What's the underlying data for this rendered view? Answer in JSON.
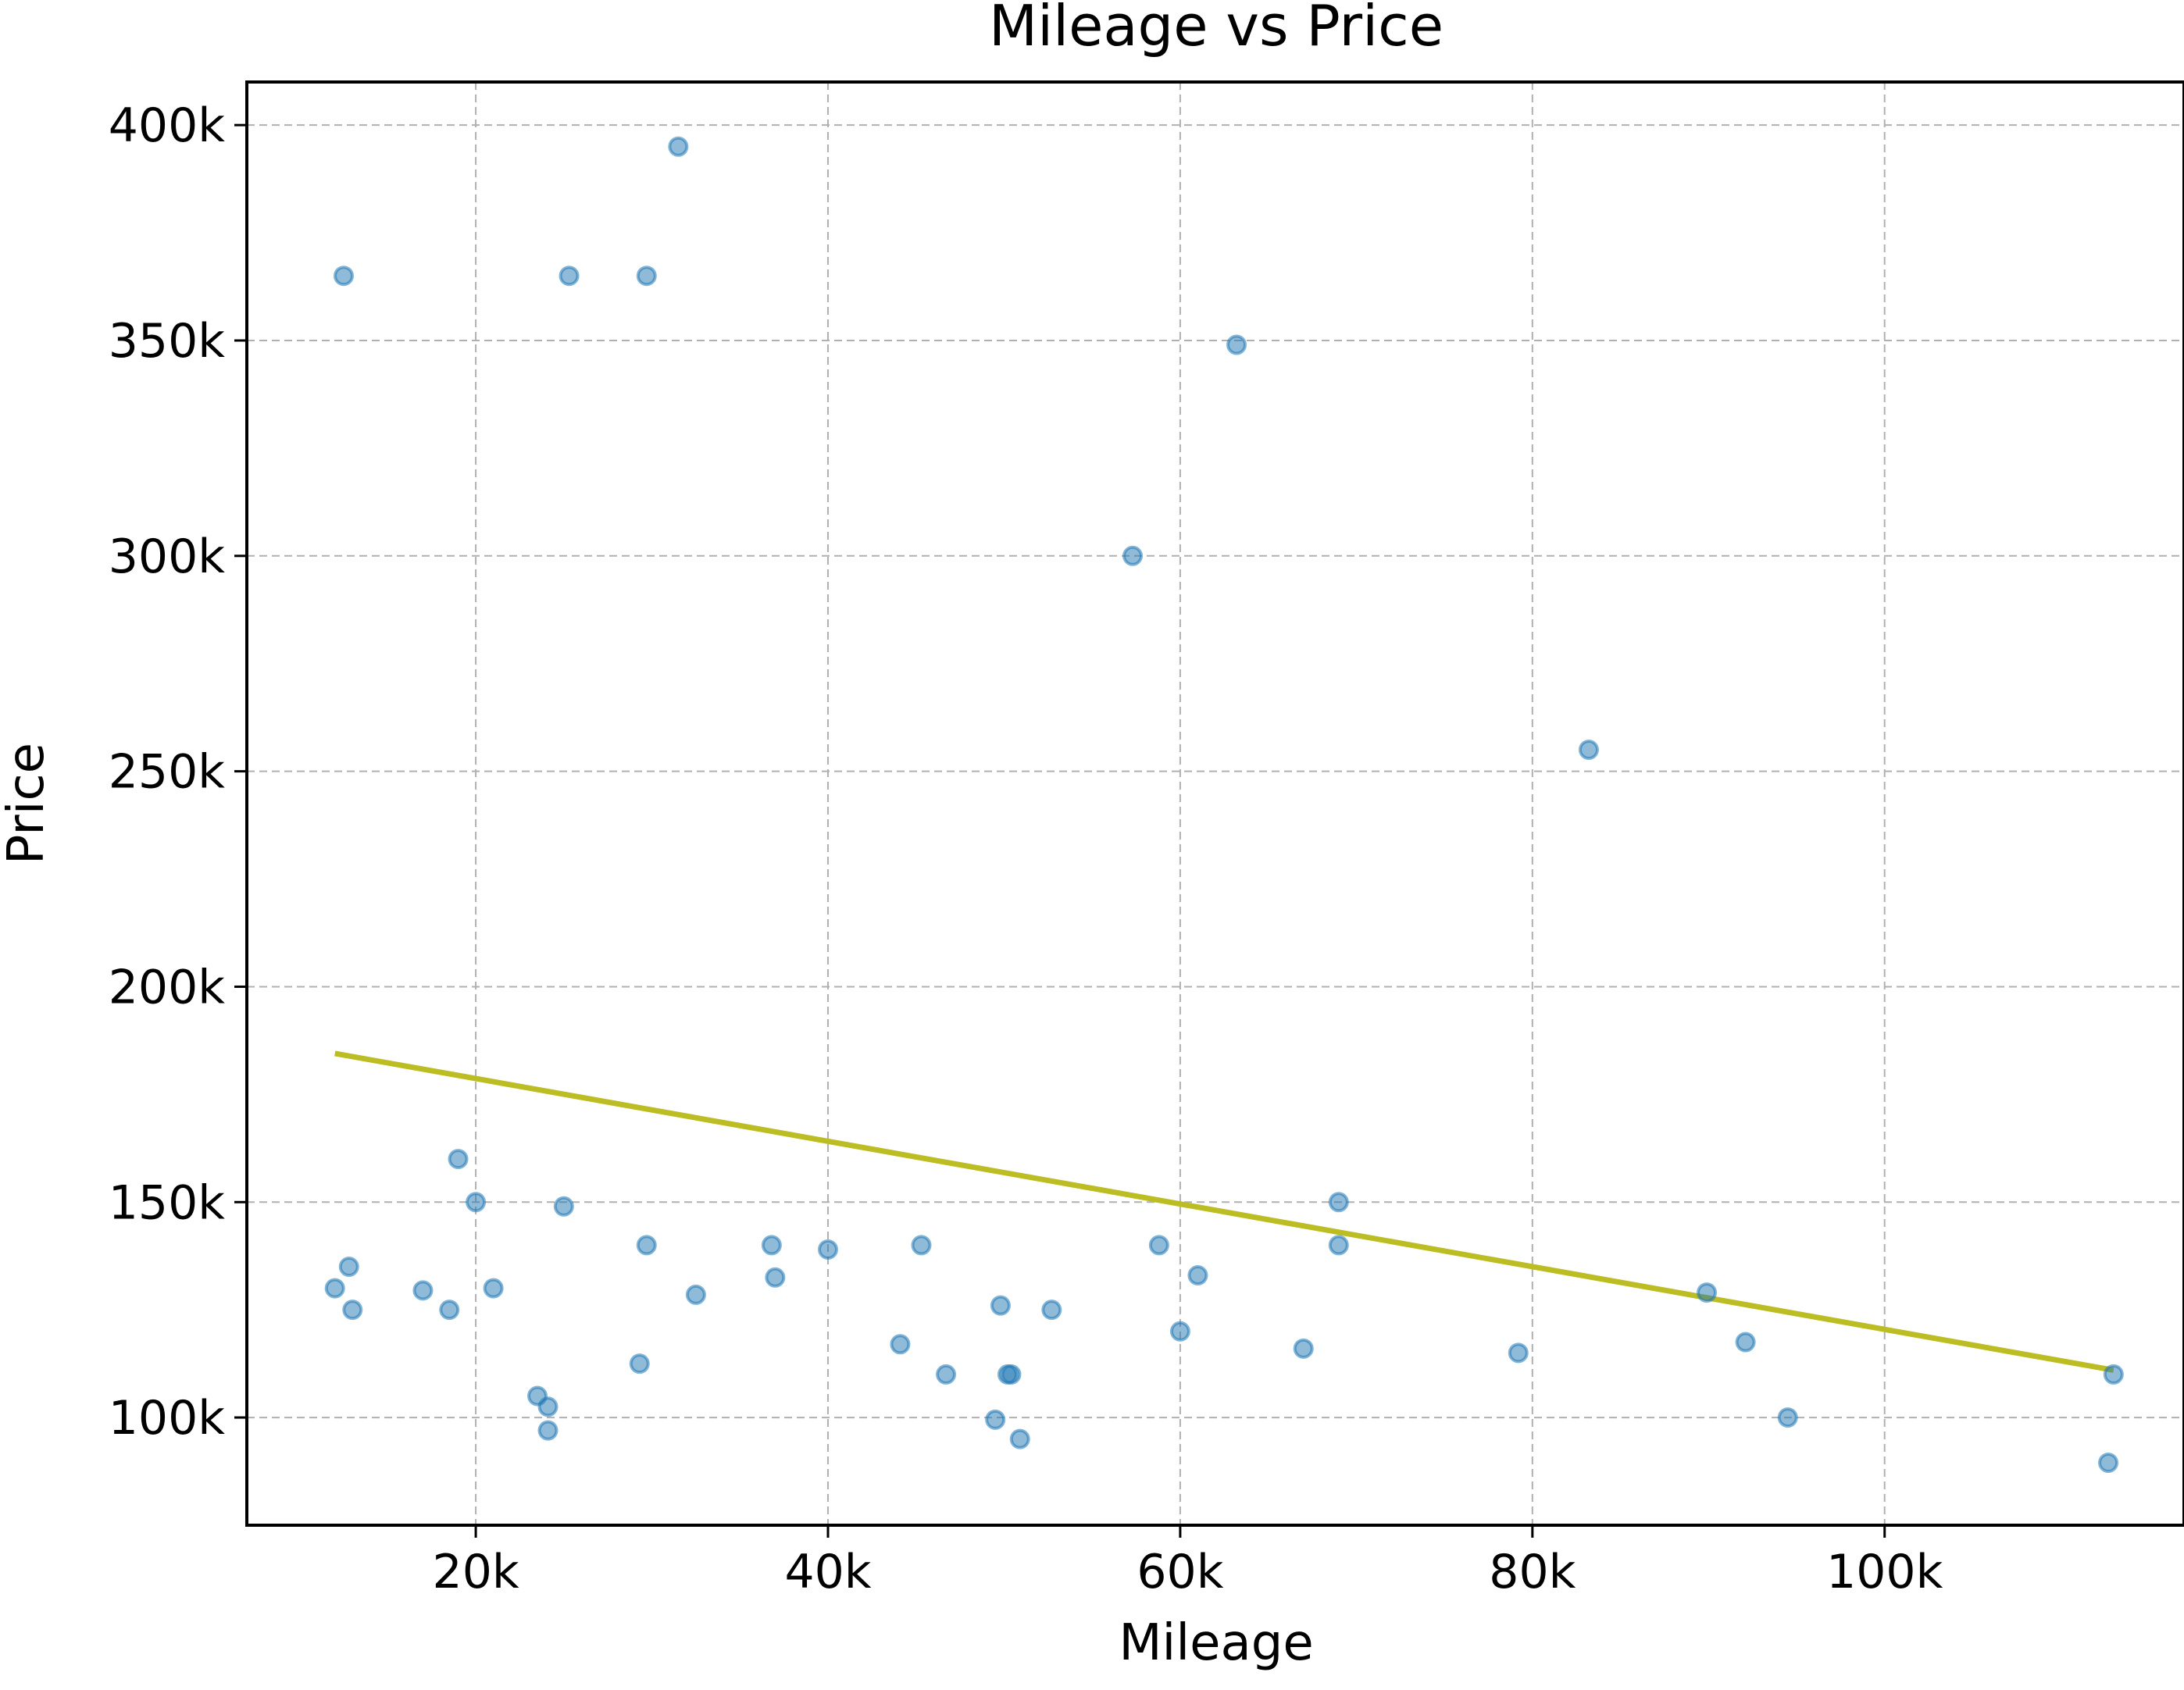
{
  "chart_data": {
    "type": "scatter",
    "title": "Mileage vs Price",
    "xlabel": "Mileage",
    "ylabel": "Price",
    "xlim": [
      7000,
      117000
    ],
    "ylim": [
      75000,
      410000
    ],
    "grid": true,
    "x_ticks": [
      20000,
      40000,
      60000,
      80000,
      100000
    ],
    "x_tick_labels": [
      "20k",
      "40k",
      "60k",
      "80k",
      "100k"
    ],
    "y_ticks": [
      100000,
      150000,
      200000,
      250000,
      300000,
      350000,
      400000
    ],
    "y_tick_labels": [
      "100k",
      "150k",
      "200k",
      "250k",
      "300k",
      "350k",
      "400k"
    ],
    "series": [
      {
        "type": "scatter",
        "color": "#1f77b4",
        "points": [
          [
            12500,
            365000
          ],
          [
            25300,
            365000
          ],
          [
            29700,
            365000
          ],
          [
            31500,
            395000
          ],
          [
            63200,
            349000
          ],
          [
            57300,
            300000
          ],
          [
            83200,
            255000
          ],
          [
            12000,
            130000
          ],
          [
            12800,
            135000
          ],
          [
            13000,
            125000
          ],
          [
            17000,
            129500
          ],
          [
            18500,
            125000
          ],
          [
            19000,
            160000
          ],
          [
            20000,
            150000
          ],
          [
            21000,
            130000
          ],
          [
            23500,
            105000
          ],
          [
            24100,
            102500
          ],
          [
            24100,
            97000
          ],
          [
            25000,
            149000
          ],
          [
            29300,
            112500
          ],
          [
            29700,
            140000
          ],
          [
            32500,
            128500
          ],
          [
            36800,
            140000
          ],
          [
            37000,
            132500
          ],
          [
            40000,
            139000
          ],
          [
            44100,
            117000
          ],
          [
            45300,
            140000
          ],
          [
            46700,
            110000
          ],
          [
            49500,
            99500
          ],
          [
            49800,
            126000
          ],
          [
            50200,
            110000
          ],
          [
            50400,
            110000
          ],
          [
            50900,
            95000
          ],
          [
            52700,
            125000
          ],
          [
            58800,
            140000
          ],
          [
            60000,
            120000
          ],
          [
            61000,
            133000
          ],
          [
            67000,
            116000
          ],
          [
            69000,
            150000
          ],
          [
            69000,
            140000
          ],
          [
            79200,
            115000
          ],
          [
            89900,
            129000
          ],
          [
            92100,
            117500
          ],
          [
            94500,
            100000
          ],
          [
            112700,
            89500
          ],
          [
            113000,
            110000
          ]
        ]
      },
      {
        "type": "line",
        "color": "#bcbd22",
        "points": [
          [
            12000,
            184500
          ],
          [
            113000,
            111000
          ]
        ]
      }
    ]
  }
}
